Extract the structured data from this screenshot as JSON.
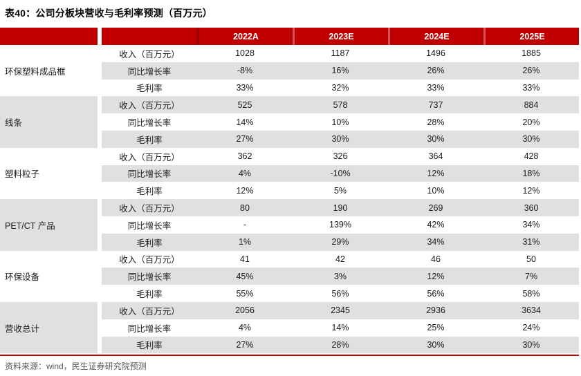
{
  "title": "表40：公司分板块营收与毛利率预测（百万元）",
  "source": "资料来源：wind，民生证券研究院预测",
  "colors": {
    "header_red": "#c00000",
    "stripe_gray": "#e0e0e0",
    "bottom_rule_red": "#c00000",
    "source_text_gray": "#595959"
  },
  "table": {
    "year_headers": [
      "2022A",
      "2023E",
      "2024E",
      "2025E"
    ],
    "metric_labels": [
      "收入（百万元）",
      "同比增长率",
      "毛利率"
    ],
    "groups": [
      {
        "label": "环保塑料成品框",
        "rows": [
          [
            "1028",
            "1187",
            "1496",
            "1885"
          ],
          [
            "-8%",
            "16%",
            "26%",
            "26%"
          ],
          [
            "33%",
            "32%",
            "33%",
            "33%"
          ]
        ]
      },
      {
        "label": "线条",
        "rows": [
          [
            "525",
            "578",
            "737",
            "884"
          ],
          [
            "14%",
            "10%",
            "28%",
            "20%"
          ],
          [
            "27%",
            "30%",
            "30%",
            "30%"
          ]
        ]
      },
      {
        "label": "塑料粒子",
        "rows": [
          [
            "362",
            "326",
            "364",
            "428"
          ],
          [
            "4%",
            "-10%",
            "12%",
            "18%"
          ],
          [
            "12%",
            "5%",
            "10%",
            "12%"
          ]
        ]
      },
      {
        "label": "PET/CT 产品",
        "rows": [
          [
            "80",
            "190",
            "269",
            "360"
          ],
          [
            "-",
            "139%",
            "42%",
            "34%"
          ],
          [
            "1%",
            "29%",
            "34%",
            "31%"
          ]
        ]
      },
      {
        "label": "环保设备",
        "rows": [
          [
            "41",
            "42",
            "46",
            "50"
          ],
          [
            "45%",
            "3%",
            "12%",
            "7%"
          ],
          [
            "55%",
            "56%",
            "56%",
            "58%"
          ]
        ]
      },
      {
        "label": "营收总计",
        "rows": [
          [
            "2056",
            "2345",
            "2936",
            "3634"
          ],
          [
            "4%",
            "14%",
            "25%",
            "24%"
          ],
          [
            "27%",
            "28%",
            "30%",
            "30%"
          ]
        ]
      }
    ]
  }
}
